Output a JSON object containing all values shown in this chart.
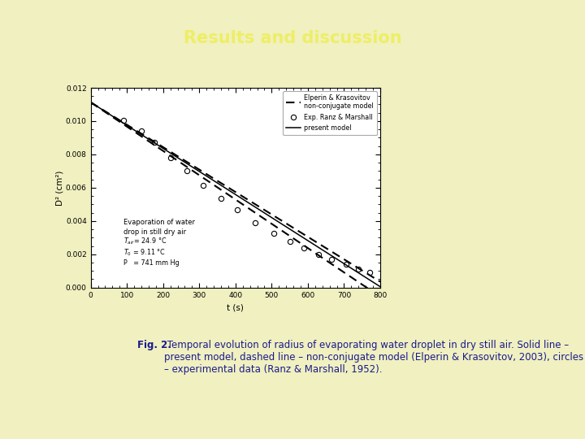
{
  "title": "Results and discussion",
  "title_bg": "#2a9d8f",
  "title_text_color": "#eeee66",
  "page_bg": "#f0f0c0",
  "plot_bg": "#ffffff",
  "plot_border_color": "#888888",
  "xlabel": "t (s)",
  "ylabel": "D² (cm²)",
  "xlim": [
    0,
    800
  ],
  "ylim": [
    0,
    0.012
  ],
  "xticks": [
    0,
    100,
    200,
    300,
    400,
    500,
    600,
    700,
    800
  ],
  "yticks": [
    0.0,
    0.002,
    0.004,
    0.006,
    0.008,
    0.01,
    0.012
  ],
  "present_model_t": [
    0,
    800
  ],
  "present_model_D2": [
    0.01113,
    5e-05
  ],
  "elperin_t": [
    0,
    800
  ],
  "elperin_D2_upper": [
    0.01113,
    0.00035
  ],
  "elperin_D2_lower": [
    0.01113,
    -0.00055
  ],
  "exp_t": [
    90,
    140,
    175,
    220,
    265,
    310,
    360,
    405,
    455,
    505,
    550,
    590,
    630,
    665,
    705,
    740,
    770
  ],
  "exp_D2": [
    0.01005,
    0.0094,
    0.00875,
    0.0078,
    0.007,
    0.00615,
    0.00535,
    0.00465,
    0.0039,
    0.00328,
    0.00275,
    0.00238,
    0.00198,
    0.00168,
    0.00138,
    0.00112,
    0.0009
  ],
  "ann_text_line1": "Evaporation of water",
  "ann_text_line2": "drop in still dry air",
  "ann_text_line3": "T",
  "ann_text_line3b": "air",
  "ann_text_line3c": "= 24.9 °C",
  "ann_text_line4": "T",
  "ann_text_line4b": "0",
  "ann_text_line4c": " = 9.11 °C",
  "ann_text_line5": "P   = 741 mm Hg",
  "caption_bold": "Fig. 2.",
  "caption_rest": " Temporal evolution of radius of evaporating water droplet in dry still air. Solid line – present model, dashed line – non-conjugate model (Elperin & Krasovitov, 2003), circles – experimental data (Ranz & Marshall, 1952).",
  "caption_bg": "#b8dce8",
  "caption_text_color": "#1a1a8c",
  "bottom_strip_color": "#3bbcbe"
}
